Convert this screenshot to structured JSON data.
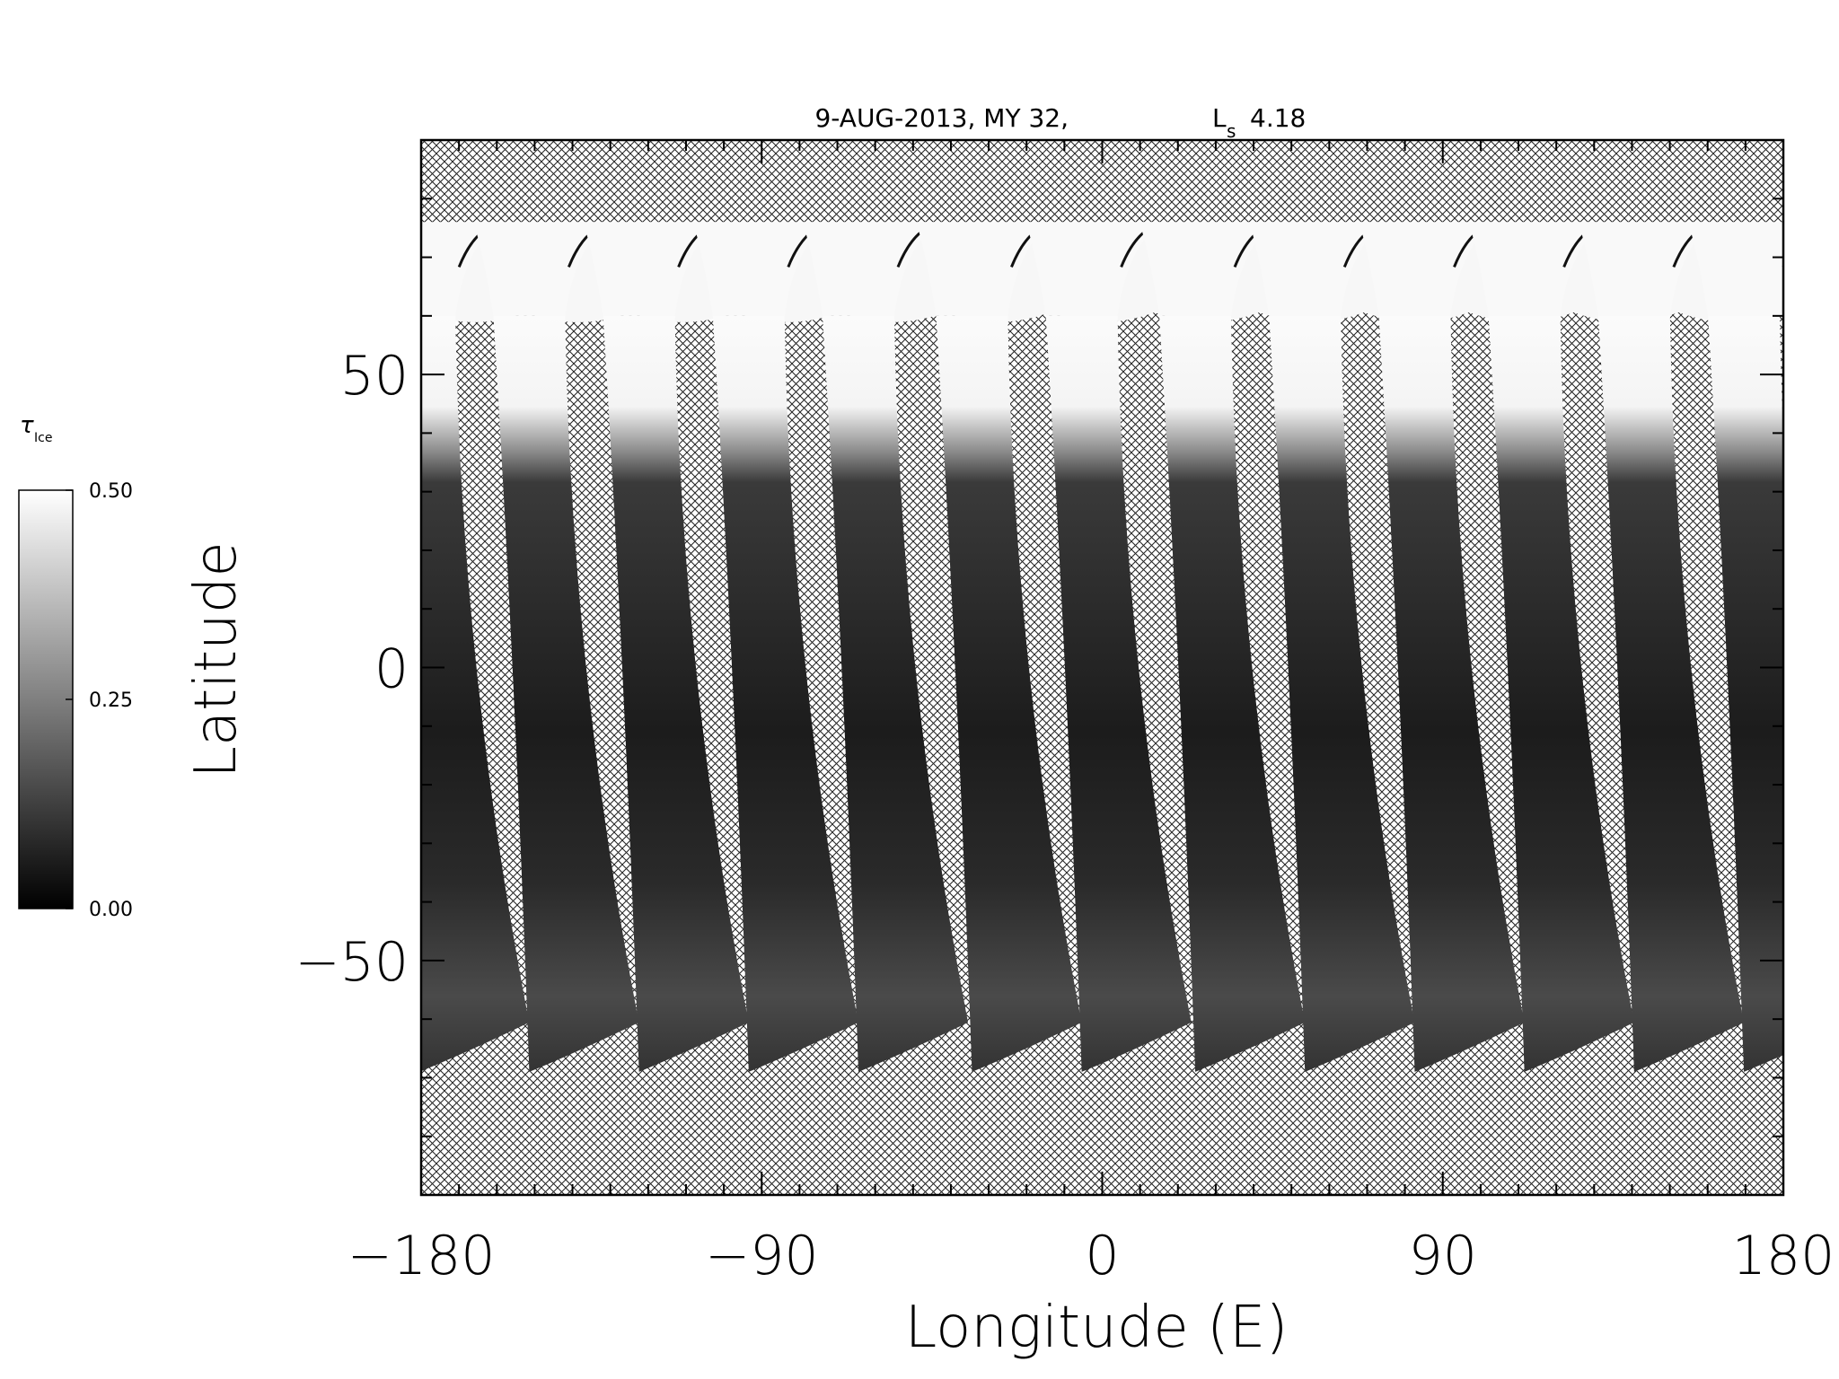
{
  "chart_data": {
    "type": "heatmap",
    "title": "9-AUG-2013, MY 32,",
    "title_ls_symbol": "L",
    "title_ls_subscript": "s",
    "title_ls_value": "4.18",
    "xlabel": "Longitude (E)",
    "ylabel": "Latitude",
    "xlim": [
      -180,
      180
    ],
    "ylim": [
      -90,
      90
    ],
    "x_ticks": [
      {
        "value": -180,
        "label": "−180"
      },
      {
        "value": -90,
        "label": "−90"
      },
      {
        "value": 0,
        "label": "0"
      },
      {
        "value": 90,
        "label": "90"
      },
      {
        "value": 180,
        "label": "180"
      }
    ],
    "y_ticks": [
      {
        "value": -50,
        "label": "−50"
      },
      {
        "value": 0,
        "label": "0"
      },
      {
        "value": 50,
        "label": "50"
      }
    ],
    "x_minor_step": 10,
    "y_minor_step": 10,
    "no_data_pattern": "crosshatch",
    "colorbar": {
      "symbol": "τ",
      "subscript": "Ice",
      "min": 0.0,
      "max": 0.5,
      "colormap": "grayscale",
      "min_color": "#000000",
      "max_color": "#ffffff",
      "ticks": [
        {
          "value": 0.5,
          "label": "0.50"
        },
        {
          "value": 0.25,
          "label": "0.25"
        },
        {
          "value": 0.0,
          "label": "0.00"
        }
      ]
    },
    "swaths": {
      "count": 13,
      "equator_longitudes": [
        -179,
        -150,
        -121,
        -92,
        -63,
        -33,
        -4,
        26,
        55,
        84,
        113,
        142,
        171
      ],
      "south_end_latitude": -69,
      "north_cap_latitude": 76,
      "cap_edge_latitude": 60,
      "typical_tau_ice_midlatitudes": 0.05,
      "typical_tau_ice_south": 0.12,
      "typical_tau_ice_north_cap": 0.48
    }
  }
}
